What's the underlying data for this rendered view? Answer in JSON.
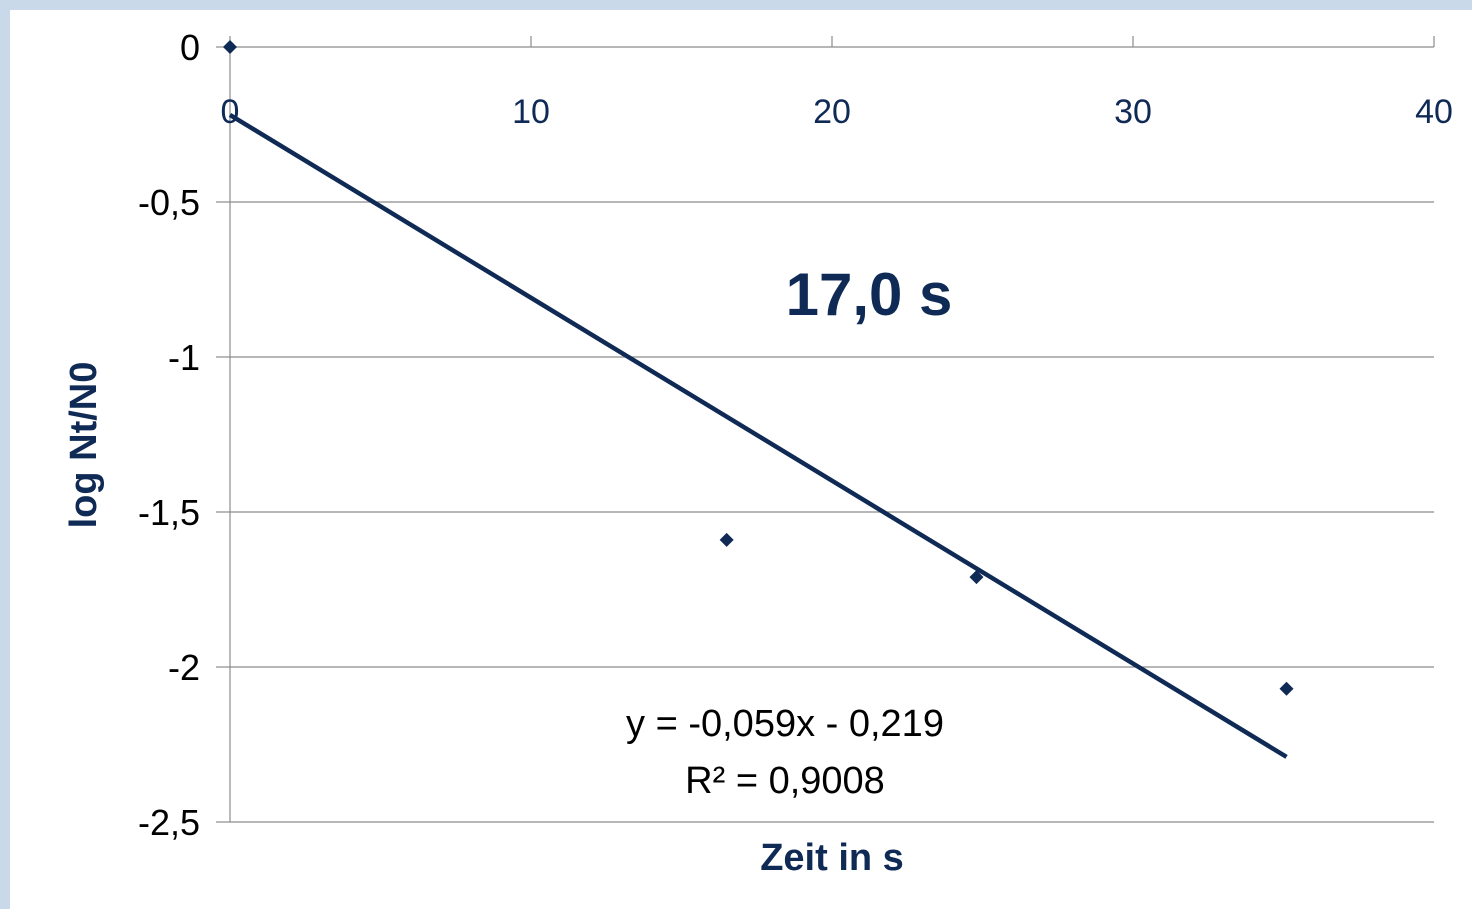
{
  "chart_data": {
    "type": "scatter",
    "title": "",
    "xlabel": "Zeit in s",
    "ylabel": "log Nt/N0",
    "xlim": [
      0,
      40
    ],
    "ylim": [
      -2.5,
      0
    ],
    "x_ticks": [
      "0",
      "10",
      "20",
      "30",
      "40"
    ],
    "y_ticks": [
      "0",
      "-0,5",
      "-1",
      "-1,5",
      "-2",
      "-2,5"
    ],
    "x_tick_values": [
      0,
      10,
      20,
      30,
      40
    ],
    "y_tick_values": [
      0,
      -0.5,
      -1,
      -1.5,
      -2,
      -2.5
    ],
    "x_axis_position": "top",
    "grid": true,
    "series": [
      {
        "points": [
          {
            "x": 0,
            "y": 0
          },
          {
            "x": 16.5,
            "y": -1.59
          },
          {
            "x": 24.8,
            "y": -1.71
          },
          {
            "x": 35.1,
            "y": -2.07
          }
        ]
      }
    ],
    "trendline": {
      "slope": -0.059,
      "intercept": -0.219,
      "x_range": [
        0,
        35.1
      ],
      "equation_label": "y = -0,059x - 0,219",
      "r2_label": "R² = 0,9008"
    },
    "annotation": "17,0 s",
    "colors": {
      "series": "#0f2a55",
      "gridline": "#8c8c8c",
      "background": "#ffffff",
      "border": "#c9d9e9"
    }
  }
}
